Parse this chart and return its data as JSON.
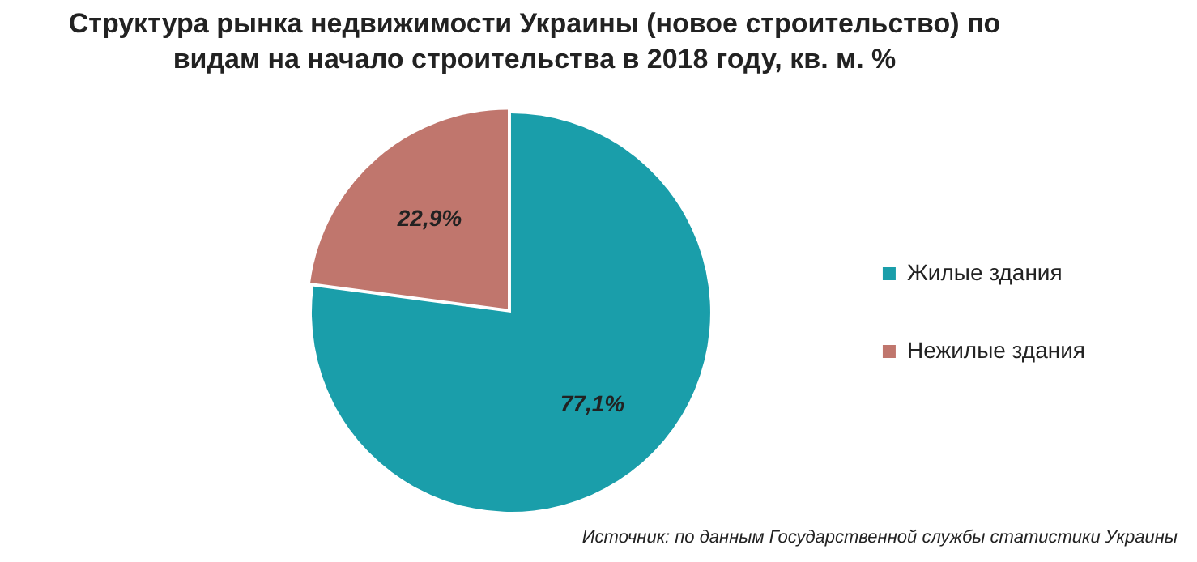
{
  "chart_data": {
    "type": "pie",
    "title": "Структура рынка недвижимости Украины (новое строительство) по видам на начало строительства в 2018 году, кв. м. %",
    "categories": [
      "Жилые здания",
      "Нежилые здания"
    ],
    "values": [
      77.1,
      22.9
    ],
    "colors": [
      "#1a9eaa",
      "#c0766d"
    ],
    "value_labels": [
      "77,1%",
      "22,9%"
    ],
    "legend": "right",
    "annotations": [
      "Источник: по данным Государственной службы статистики Украины"
    ]
  }
}
